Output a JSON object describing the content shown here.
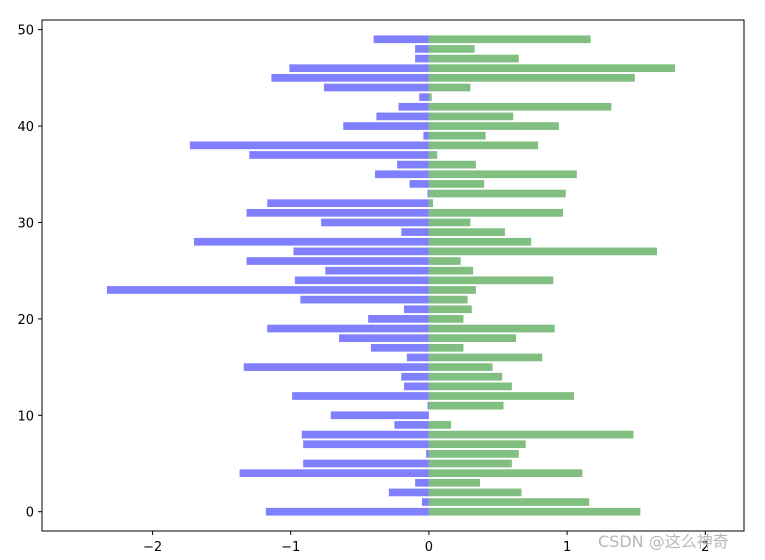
{
  "chart_data": {
    "type": "bar",
    "orientation": "horizontal",
    "title": "",
    "xlabel": "",
    "ylabel": "",
    "xlim": [
      -2.8,
      2.28
    ],
    "ylim": [
      -2.0,
      51.0
    ],
    "x_ticks": [
      "−2",
      "−1",
      "0",
      "1",
      "2"
    ],
    "x_tick_values": [
      -2,
      -1,
      0,
      1,
      2
    ],
    "y_ticks": [
      "0",
      "10",
      "20",
      "30",
      "40",
      "50"
    ],
    "y_tick_values": [
      0,
      10,
      20,
      30,
      40,
      50
    ],
    "grid": false,
    "legend": "none",
    "categories": [
      0,
      1,
      2,
      3,
      4,
      5,
      6,
      7,
      8,
      9,
      10,
      11,
      12,
      13,
      14,
      15,
      16,
      17,
      18,
      19,
      20,
      21,
      22,
      23,
      24,
      25,
      26,
      27,
      28,
      29,
      30,
      31,
      32,
      33,
      34,
      35,
      36,
      37,
      38,
      39,
      40,
      41,
      42,
      43,
      44,
      45,
      46,
      47,
      48,
      49
    ],
    "series": [
      {
        "color": "#8080ff",
        "values": [
          -1.18,
          -0.05,
          -0.29,
          -0.1,
          -1.37,
          -0.91,
          -0.02,
          -0.91,
          -0.92,
          -0.25,
          -0.71,
          -0.01,
          -0.99,
          -0.18,
          -0.2,
          -1.34,
          -0.16,
          -0.42,
          -0.65,
          -1.17,
          -0.44,
          -0.18,
          -0.93,
          -2.33,
          -0.97,
          -0.75,
          -1.32,
          -0.98,
          -1.7,
          -0.2,
          -0.78,
          -1.32,
          -1.17,
          -0.01,
          -0.14,
          -0.39,
          -0.23,
          -1.3,
          -1.73,
          -0.04,
          -0.62,
          -0.38,
          -0.22,
          -0.07,
          -0.76,
          -1.14,
          -1.01,
          -0.1,
          -0.1,
          -0.4
        ]
      },
      {
        "color": "#80bf80",
        "values": [
          1.53,
          1.16,
          0.67,
          0.37,
          1.11,
          0.6,
          0.65,
          0.7,
          1.48,
          0.16,
          0.0,
          0.54,
          1.05,
          0.6,
          0.53,
          0.46,
          0.82,
          0.25,
          0.63,
          0.91,
          0.25,
          0.31,
          0.28,
          0.34,
          0.9,
          0.32,
          0.23,
          1.65,
          0.74,
          0.55,
          0.3,
          0.97,
          0.03,
          0.99,
          0.4,
          1.07,
          0.34,
          0.06,
          0.79,
          0.41,
          0.94,
          0.61,
          1.32,
          0.02,
          0.3,
          1.49,
          1.78,
          0.65,
          0.33,
          1.17
        ]
      }
    ]
  },
  "watermark": "CSDN @这么神奇"
}
